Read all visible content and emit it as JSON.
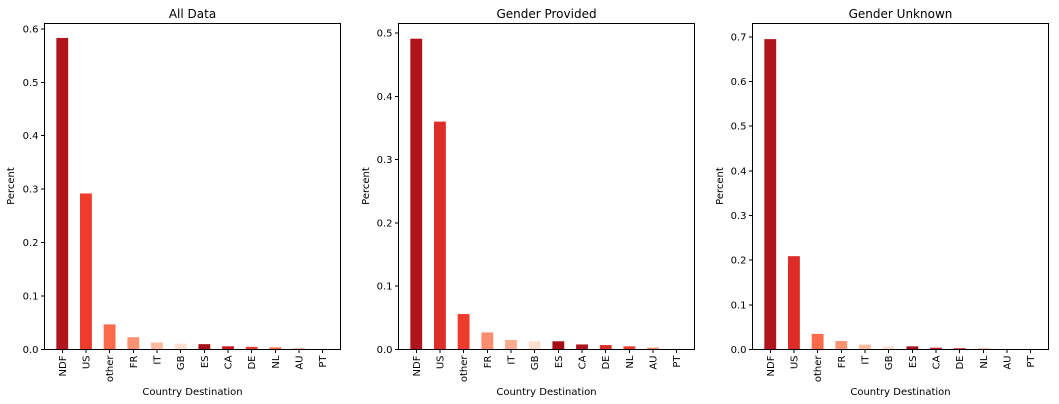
{
  "chart_data": [
    {
      "type": "bar",
      "title": "All Data",
      "xlabel": "Country Destination",
      "ylabel": "Percent",
      "ylim": [
        0,
        0.61
      ],
      "yticks": [
        "0.0",
        "0.1",
        "0.2",
        "0.3",
        "0.4",
        "0.5",
        "0.6"
      ],
      "categories": [
        "NDF",
        "US",
        "other",
        "FR",
        "IT",
        "GB",
        "ES",
        "CA",
        "DE",
        "NL",
        "AU",
        "PT"
      ],
      "values": [
        0.583,
        0.292,
        0.047,
        0.023,
        0.013,
        0.011,
        0.01,
        0.006,
        0.005,
        0.004,
        0.002,
        0.001
      ],
      "colors": [
        "#b0141c",
        "#ef3b2c",
        "#fb6a4a",
        "#fc9272",
        "#fcbba1",
        "#fee0d2",
        "#a50f15",
        "#cb181d",
        "#ef3b2c",
        "#fb6a4a",
        "#fc9272",
        "#fcbba1"
      ],
      "grid": false
    },
    {
      "type": "bar",
      "title": "Gender Provided",
      "xlabel": "Country Destination",
      "ylabel": "Percent",
      "ylim": [
        0,
        0.515
      ],
      "yticks": [
        "0.0",
        "0.1",
        "0.2",
        "0.3",
        "0.4",
        "0.5"
      ],
      "categories": [
        "NDF",
        "US",
        "other",
        "FR",
        "IT",
        "GB",
        "ES",
        "CA",
        "DE",
        "NL",
        "AU",
        "PT"
      ],
      "values": [
        0.491,
        0.36,
        0.056,
        0.027,
        0.015,
        0.013,
        0.013,
        0.008,
        0.007,
        0.005,
        0.003,
        0.001
      ],
      "colors": [
        "#b0141c",
        "#de2d26",
        "#ef3b2c",
        "#fc8d6e",
        "#fcab91",
        "#fee0d2",
        "#a50f15",
        "#b0141c",
        "#de2d26",
        "#ef3b2c",
        "#fc8d6e",
        "#fcab91"
      ],
      "grid": false
    },
    {
      "type": "bar",
      "title": "Gender Unknown",
      "xlabel": "Country Destination",
      "ylabel": "Percent",
      "ylim": [
        0,
        0.73
      ],
      "yticks": [
        "0.0",
        "0.1",
        "0.2",
        "0.3",
        "0.4",
        "0.5",
        "0.6",
        "0.7"
      ],
      "categories": [
        "NDF",
        "US",
        "other",
        "FR",
        "IT",
        "GB",
        "ES",
        "CA",
        "DE",
        "NL",
        "AU",
        "PT"
      ],
      "values": [
        0.695,
        0.209,
        0.035,
        0.019,
        0.011,
        0.007,
        0.007,
        0.004,
        0.003,
        0.002,
        0.001,
        0.0005
      ],
      "colors": [
        "#b0141c",
        "#de2d26",
        "#fb6a4a",
        "#fc9272",
        "#fcbba1",
        "#fee0d2",
        "#a50f15",
        "#cb181d",
        "#de2d26",
        "#fb6a4a",
        "#fc9272",
        "#fcbba1"
      ],
      "grid": false
    }
  ]
}
